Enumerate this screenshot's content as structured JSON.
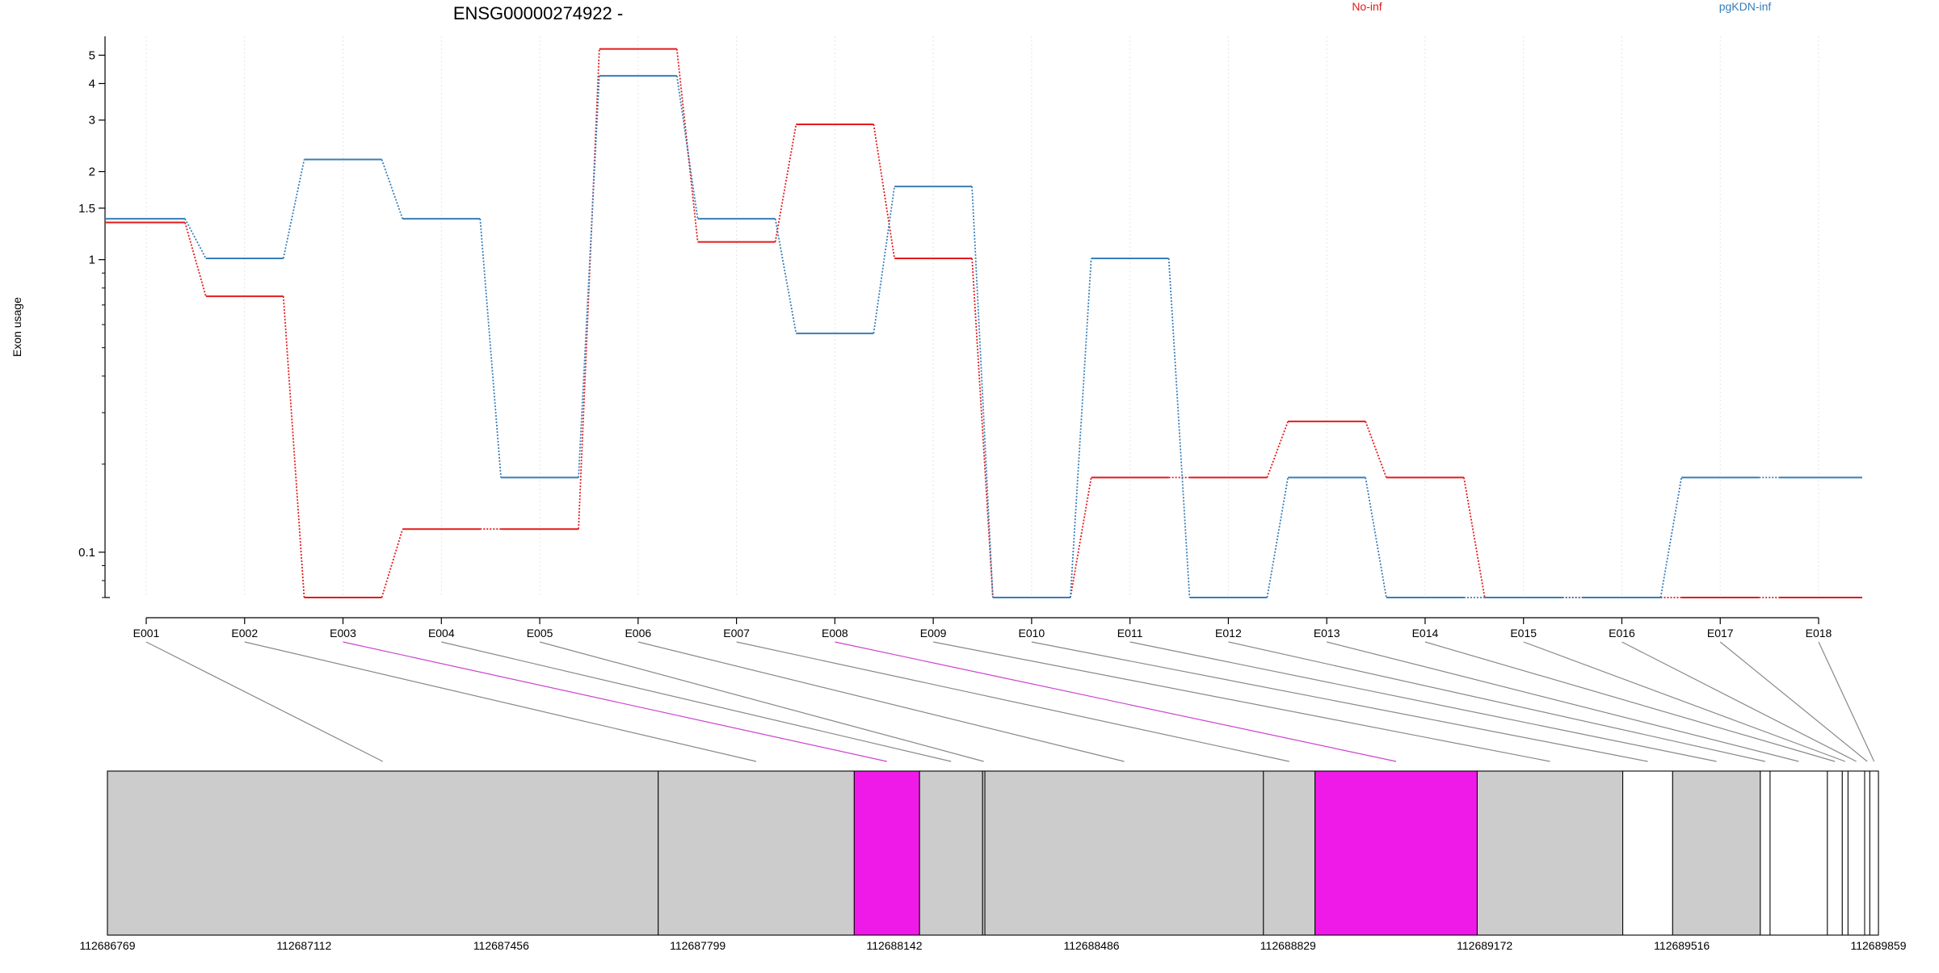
{
  "chart_data": {
    "type": "line",
    "title": "ENSG00000274922 -",
    "ylabel": "Exon usage",
    "xlabel": "",
    "y_scale": "log",
    "ylim": [
      0.07,
      5.8
    ],
    "y_ticks": [
      0.1,
      1,
      1.5,
      2,
      3,
      4,
      5
    ],
    "y_tick_labels": [
      "0.1",
      "1",
      "1.5",
      "2",
      "3",
      "4",
      "5"
    ],
    "grid": true,
    "legend_placement": "top",
    "categories": [
      "E001",
      "E002",
      "E003",
      "E004",
      "E005",
      "E006",
      "E007",
      "E008",
      "E009",
      "E010",
      "E011",
      "E012",
      "E013",
      "E014",
      "E015",
      "E016",
      "E017",
      "E018"
    ],
    "series": [
      {
        "name": "No-inf",
        "color": "#e41a1c",
        "values": [
          1.34,
          0.75,
          0.07,
          0.12,
          0.12,
          5.25,
          1.15,
          2.9,
          1.01,
          0.07,
          0.18,
          0.18,
          0.28,
          0.18,
          0.07,
          0.07,
          0.07,
          0.07
        ]
      },
      {
        "name": "pgKDN-inf",
        "color": "#377eb8",
        "values": [
          1.38,
          1.01,
          2.2,
          1.38,
          0.18,
          4.25,
          1.38,
          0.56,
          1.78,
          0.07,
          1.01,
          0.07,
          0.18,
          0.07,
          0.07,
          0.07,
          0.18,
          0.18
        ]
      }
    ],
    "gene_model": {
      "coordinate_range": [
        112686769,
        112689859
      ],
      "coordinate_ticks": [
        112686769,
        112687112,
        112687456,
        112687799,
        112688142,
        112688486,
        112688829,
        112689172,
        112689516,
        112689859
      ],
      "coordinate_tick_labels": [
        "112686769",
        "112687112",
        "112687456",
        "112687799",
        "112688142",
        "112688486",
        "112688829",
        "112689172",
        "112689516",
        "112689859"
      ],
      "exons": [
        {
          "id": "E001",
          "start": 112686769,
          "end": 112687730,
          "fill": "#cccccc",
          "line": "#888888"
        },
        {
          "id": "E002",
          "start": 112687730,
          "end": 112688072,
          "fill": "#cccccc",
          "line": "#888888"
        },
        {
          "id": "E003",
          "start": 112688072,
          "end": 112688186,
          "fill": "#f01ae8",
          "line": "#cc44cc"
        },
        {
          "id": "E004",
          "start": 112688186,
          "end": 112688296,
          "fill": "#cccccc",
          "line": "#888888"
        },
        {
          "id": "E005",
          "start": 112688296,
          "end": 112688300,
          "fill": "#cccccc",
          "line": "#888888"
        },
        {
          "id": "E006",
          "start": 112688300,
          "end": 112688786,
          "fill": "#cccccc",
          "line": "#888888"
        },
        {
          "id": "E007",
          "start": 112688786,
          "end": 112688876,
          "fill": "#cccccc",
          "line": "#888888"
        },
        {
          "id": "E008",
          "start": 112688876,
          "end": 112689159,
          "fill": "#f01ae8",
          "line": "#cc44cc"
        },
        {
          "id": "E009",
          "start": 112689159,
          "end": 112689413,
          "fill": "#cccccc",
          "line": "#888888"
        },
        {
          "id": "E010",
          "start": 112689413,
          "end": 112689500,
          "fill": "#ffffff",
          "line": "#888888"
        },
        {
          "id": "E011",
          "start": 112689500,
          "end": 112689653,
          "fill": "#cccccc",
          "line": "#888888"
        },
        {
          "id": "E012",
          "start": 112689653,
          "end": 112689670,
          "fill": "#ffffff",
          "line": "#888888"
        },
        {
          "id": "E013",
          "start": 112689670,
          "end": 112689770,
          "fill": "#ffffff",
          "line": "#888888"
        },
        {
          "id": "E014",
          "start": 112689770,
          "end": 112689796,
          "fill": "#ffffff",
          "line": "#888888"
        },
        {
          "id": "E015",
          "start": 112689796,
          "end": 112689806,
          "fill": "#ffffff",
          "line": "#888888"
        },
        {
          "id": "E016",
          "start": 112689806,
          "end": 112689835,
          "fill": "#ffffff",
          "line": "#888888"
        },
        {
          "id": "E017",
          "start": 112689835,
          "end": 112689844,
          "fill": "#ffffff",
          "line": "#888888"
        },
        {
          "id": "E018",
          "start": 112689844,
          "end": 112689859,
          "fill": "#ffffff",
          "line": "#888888"
        }
      ]
    }
  }
}
